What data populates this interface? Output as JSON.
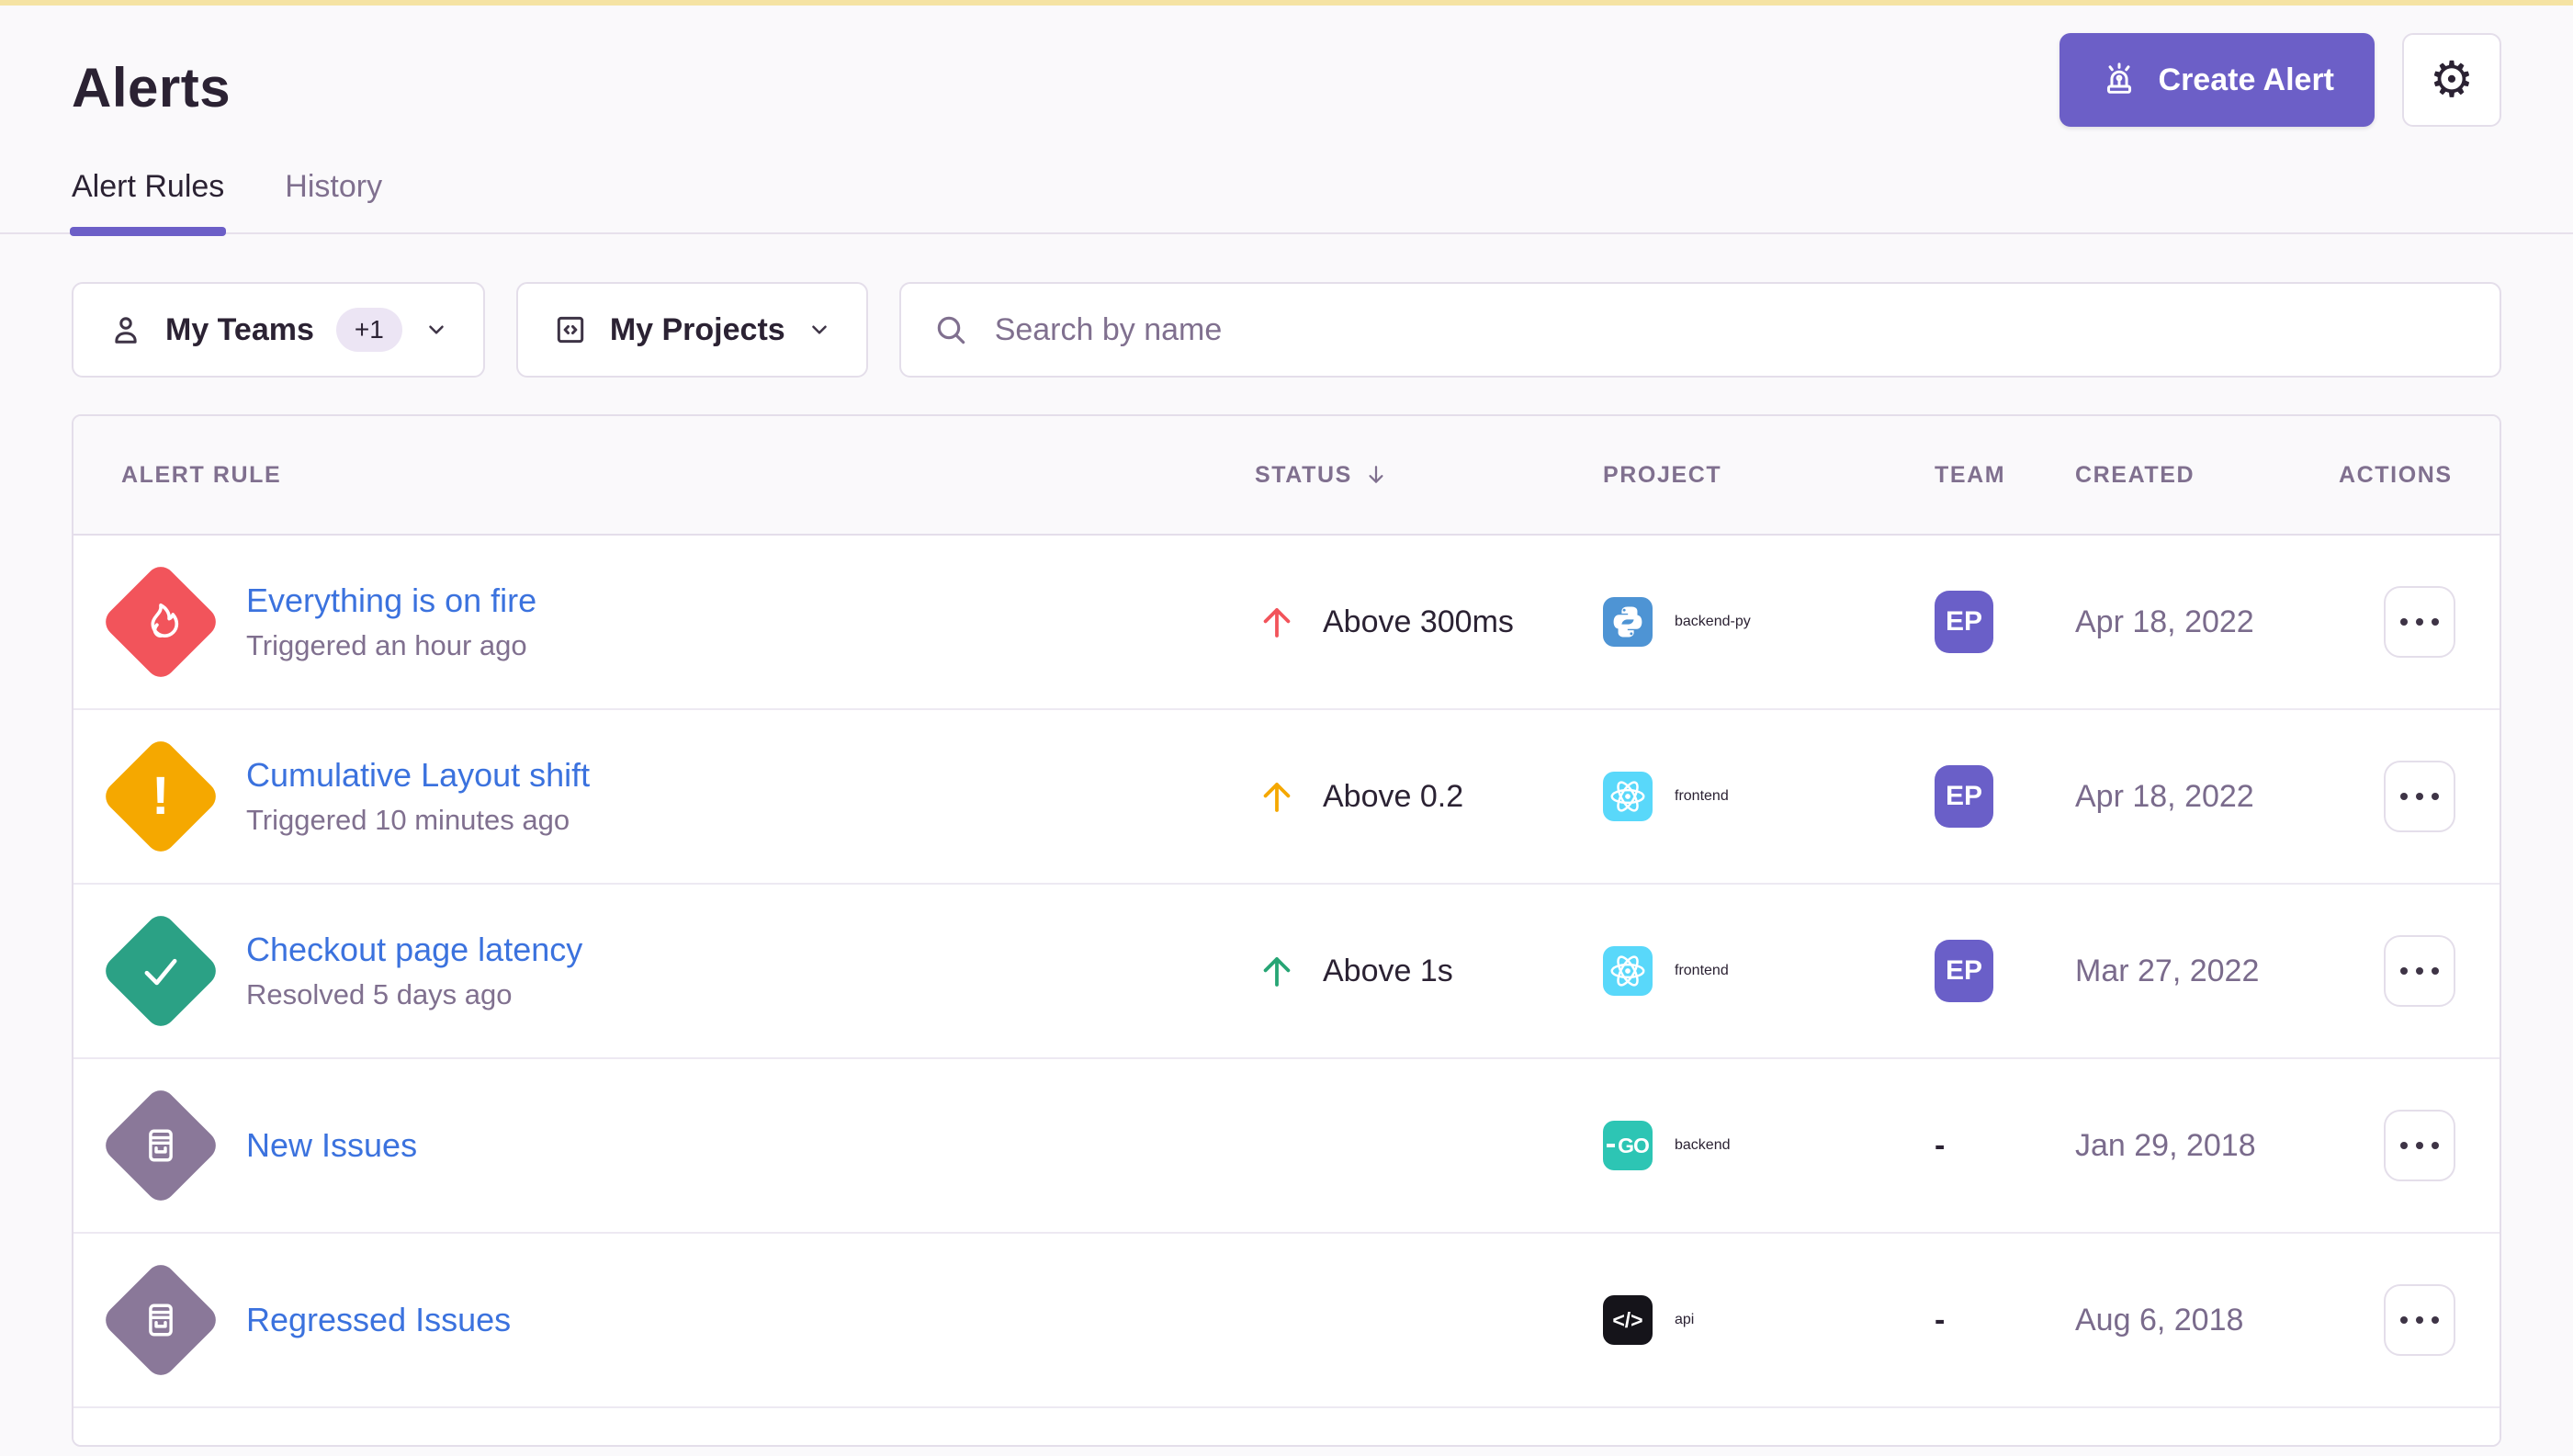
{
  "page_title": "Alerts",
  "header": {
    "create_alert_label": "Create Alert"
  },
  "icons": {
    "gear-icon": "⚙"
  },
  "tabs": {
    "alert_rules": "Alert Rules",
    "history": "History"
  },
  "filters": {
    "teams_label": "My Teams",
    "teams_extra_badge": "+1",
    "projects_label": "My Projects",
    "search_placeholder": "Search by name"
  },
  "table": {
    "columns": {
      "alert_rule": "ALERT RULE",
      "status": "STATUS",
      "project": "PROJECT",
      "team": "TEAM",
      "created": "CREATED",
      "actions": "ACTIONS"
    },
    "sort": {
      "column": "STATUS",
      "direction": "desc"
    },
    "rows": [
      {
        "icon_glyph": "flame",
        "icon_color": "#F2545B",
        "name": "Everything is on fire",
        "subtitle": "Triggered an hour ago",
        "status": {
          "label": "Above 300ms",
          "direction": "up",
          "arrow_color": "#F2545B"
        },
        "project": {
          "label": "backend-py",
          "platform": "python-icon",
          "icon_bg": "#4E94D4"
        },
        "team": {
          "type": "avatar",
          "label": "EP",
          "bg": "#6A5FC8"
        },
        "created": "Apr 18, 2022"
      },
      {
        "icon_glyph": "exclamation",
        "icon_color": "#F5A800",
        "name": "Cumulative Layout shift",
        "subtitle": "Triggered 10 minutes ago",
        "status": {
          "label": "Above 0.2",
          "direction": "up",
          "arrow_color": "#F5A800"
        },
        "project": {
          "label": "frontend",
          "platform": "react-icon",
          "icon_bg": "#59D8FA"
        },
        "team": {
          "type": "avatar",
          "label": "EP",
          "bg": "#6A5FC8"
        },
        "created": "Apr 18, 2022"
      },
      {
        "icon_glyph": "check",
        "icon_color": "#2BA185",
        "name": "Checkout page latency",
        "subtitle": "Resolved 5 days ago",
        "status": {
          "label": "Above 1s",
          "direction": "up",
          "arrow_color": "#27A575"
        },
        "project": {
          "label": "frontend",
          "platform": "react-icon",
          "icon_bg": "#59D8FA"
        },
        "team": {
          "type": "avatar",
          "label": "EP",
          "bg": "#6A5FC8"
        },
        "created": "Mar 27, 2022"
      },
      {
        "icon_glyph": "issues",
        "icon_color": "#8A7899",
        "name": "New Issues",
        "subtitle": null,
        "status": null,
        "project": {
          "label": "backend",
          "platform": "go-icon",
          "icon_bg": "#2DC5B4"
        },
        "team": {
          "type": "none",
          "label": "-"
        },
        "created": "Jan 29, 2018"
      },
      {
        "icon_glyph": "issues",
        "icon_color": "#8A7899",
        "name": "Regressed Issues",
        "subtitle": null,
        "status": null,
        "project": {
          "label": "api",
          "platform": "code-icon",
          "icon_bg": "#15141A"
        },
        "team": {
          "type": "none",
          "label": "-"
        },
        "created": "Aug 6, 2018"
      }
    ]
  },
  "colors": {
    "accent_purple": "#6C5FC7",
    "link_blue": "#3B72DE",
    "alert_red": "#F2545B",
    "alert_yellow": "#F5A800",
    "resolved_green": "#2BA185",
    "muted_diamond": "#8A7899",
    "banner_yellow": "#F5E3A3"
  }
}
